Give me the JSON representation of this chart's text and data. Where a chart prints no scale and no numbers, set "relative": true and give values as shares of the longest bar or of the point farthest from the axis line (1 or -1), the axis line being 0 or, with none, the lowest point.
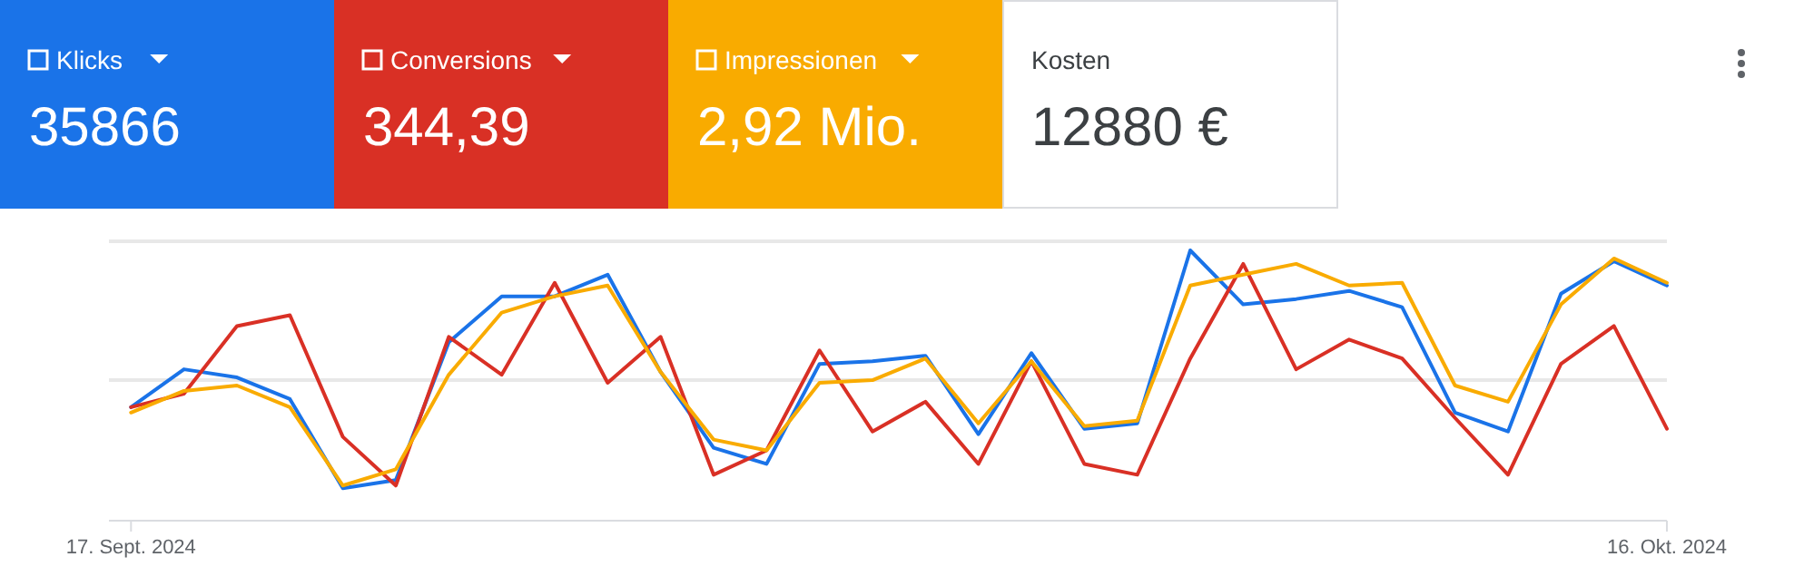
{
  "chart_data": {
    "type": "line",
    "relative": true,
    "ref_lines": [
      {
        "axis": "y",
        "value": 0.52,
        "color": "#e8e8e8"
      }
    ],
    "legend": "top left",
    "marker": "none",
    "line_style": "solid",
    "x": [
      "2024-09-17",
      "2024-09-18",
      "2024-09-19",
      "2024-09-20",
      "2024-09-21",
      "2024-09-22",
      "2024-09-23",
      "2024-09-24",
      "2024-09-25",
      "2024-09-26",
      "2024-09-27",
      "2024-09-28",
      "2024-09-29",
      "2024-09-30",
      "2024-10-01",
      "2024-10-02",
      "2024-10-03",
      "2024-10-04",
      "2024-10-05",
      "2024-10-06",
      "2024-10-07",
      "2024-10-08",
      "2024-10-09",
      "2024-10-10",
      "2024-10-11",
      "2024-10-12",
      "2024-10-13",
      "2024-10-14",
      "2024-10-15",
      "2024-10-16"
    ],
    "xlim": [
      "2024-09-16T14:00",
      "2024-10-16"
    ],
    "xticks": [
      {
        "value": "2024-09-17",
        "label": "17. Sept. 2024"
      },
      {
        "value": "2024-10-16",
        "label": "16. Okt. 2024"
      }
    ],
    "series": [
      {
        "name": "Klicks",
        "color": "#1a73e8",
        "values": [
          0.42,
          0.56,
          0.53,
          0.45,
          0.12,
          0.15,
          0.66,
          0.83,
          0.83,
          0.91,
          0.55,
          0.27,
          0.21,
          0.58,
          0.59,
          0.61,
          0.32,
          0.62,
          0.34,
          0.36,
          1,
          0.8,
          0.82,
          0.85,
          0.79,
          0.4,
          0.33,
          0.84,
          0.96,
          0.87
        ]
      },
      {
        "name": "Conversions",
        "color": "#d93025",
        "values": [
          0.42,
          0.47,
          0.72,
          0.76,
          0.31,
          0.13,
          0.68,
          0.54,
          0.88,
          0.51,
          0.68,
          0.17,
          0.26,
          0.63,
          0.33,
          0.44,
          0.21,
          0.59,
          0.21,
          0.17,
          0.6,
          0.95,
          0.56,
          0.67,
          0.6,
          0.38,
          0.17,
          0.58,
          0.72,
          0.34
        ]
      },
      {
        "name": "Impressionen",
        "color": "#f9ab00",
        "values": [
          0.4,
          0.48,
          0.5,
          0.42,
          0.13,
          0.19,
          0.54,
          0.77,
          0.83,
          0.87,
          0.55,
          0.3,
          0.26,
          0.51,
          0.52,
          0.6,
          0.36,
          0.59,
          0.35,
          0.37,
          0.87,
          0.91,
          0.95,
          0.87,
          0.88,
          0.5,
          0.44,
          0.8,
          0.97,
          0.88
        ]
      }
    ],
    "annotations": [
      "35866",
      "344,39",
      "2,92 Mio.",
      "Kosten",
      "12880 €"
    ]
  }
}
